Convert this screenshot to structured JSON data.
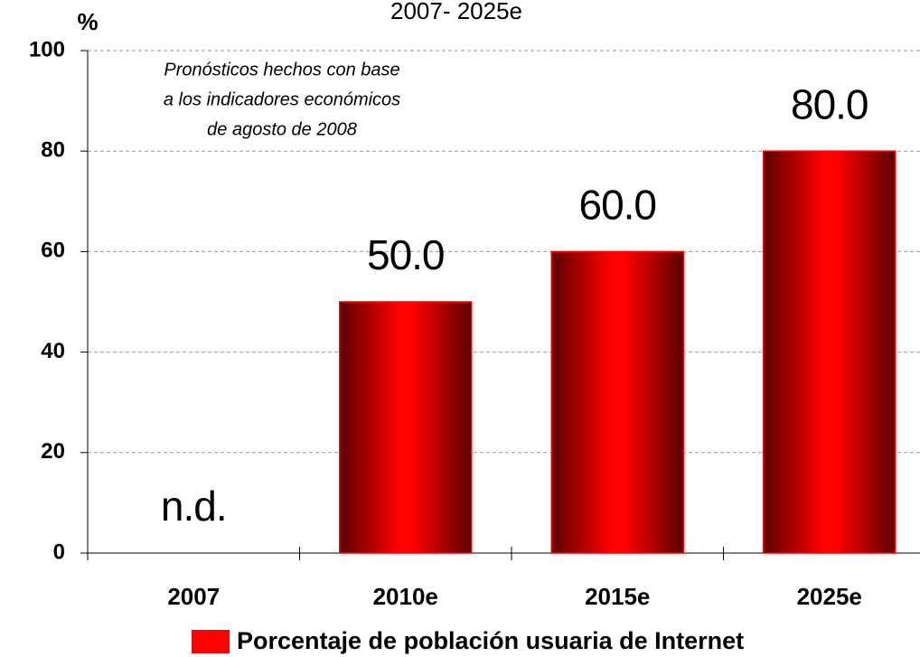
{
  "chart_data": {
    "type": "bar",
    "title": "2007- 2025e",
    "y_label": "%",
    "annotations": [
      "Pronósticos  hechos con base",
      "a los indicadores económicos",
      "de agosto de 2008"
    ],
    "categories": [
      "2007",
      "2010e",
      "2015e",
      "2025e"
    ],
    "series": [
      {
        "name": "Porcentaje de población usuaria de Internet",
        "color": "#ff0000",
        "values": [
          null,
          50,
          60,
          80
        ],
        "value_labels": [
          "n.d.",
          "50.0",
          "60.0",
          "80.0"
        ]
      }
    ],
    "ylim": [
      0,
      100
    ],
    "yticks": [
      0,
      20,
      40,
      60,
      80,
      100
    ],
    "grid": true,
    "legend": "bottom"
  }
}
